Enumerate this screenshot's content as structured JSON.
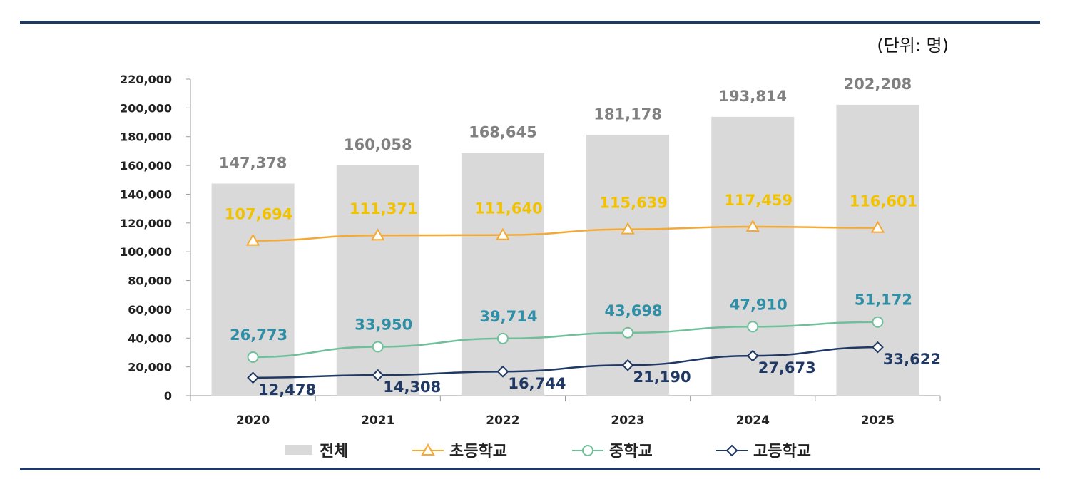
{
  "unit_label": "(단위: 명)",
  "chart_data": {
    "type": "bar",
    "categories": [
      "2020",
      "2021",
      "2022",
      "2023",
      "2024",
      "2025"
    ],
    "ylim": [
      0,
      220000
    ],
    "yticks": [
      0,
      20000,
      40000,
      60000,
      80000,
      100000,
      120000,
      140000,
      160000,
      180000,
      200000,
      220000
    ],
    "ytick_labels": [
      "0",
      "20,000",
      "40,000",
      "60,000",
      "80,000",
      "100,000",
      "120,000",
      "140,000",
      "160,000",
      "180,000",
      "200,000",
      "220,000"
    ],
    "grid": false,
    "legend_position": "bottom",
    "series": [
      {
        "name": "전체",
        "kind": "bar",
        "color": "#d9d9d9",
        "label_color": "#808080",
        "values": [
          147378,
          160058,
          168645,
          181178,
          193814,
          202208
        ],
        "labels": [
          "147,378",
          "160,058",
          "168,645",
          "181,178",
          "193,814",
          "202,208"
        ]
      },
      {
        "name": "초등학교",
        "kind": "line",
        "marker": "triangle",
        "color": "#f4a935",
        "label_color": "#f2c200",
        "values": [
          107694,
          111371,
          111640,
          115639,
          117459,
          116601
        ],
        "labels": [
          "107,694",
          "111,371",
          "111,640",
          "115,639",
          "117,459",
          "116,601"
        ]
      },
      {
        "name": "중학교",
        "kind": "line",
        "marker": "circle",
        "color": "#6fbf9a",
        "label_color": "#2e8fa6",
        "values": [
          26773,
          33950,
          39714,
          43698,
          47910,
          51172
        ],
        "labels": [
          "26,773",
          "33,950",
          "39,714",
          "43,698",
          "47,910",
          "51,172"
        ]
      },
      {
        "name": "고등학교",
        "kind": "line",
        "marker": "diamond",
        "color": "#1f3864",
        "label_color": "#1f3864",
        "values": [
          12478,
          14308,
          16744,
          21190,
          27673,
          33622
        ],
        "labels": [
          "12,478",
          "14,308",
          "16,744",
          "21,190",
          "27,673",
          "33,622"
        ]
      }
    ]
  }
}
